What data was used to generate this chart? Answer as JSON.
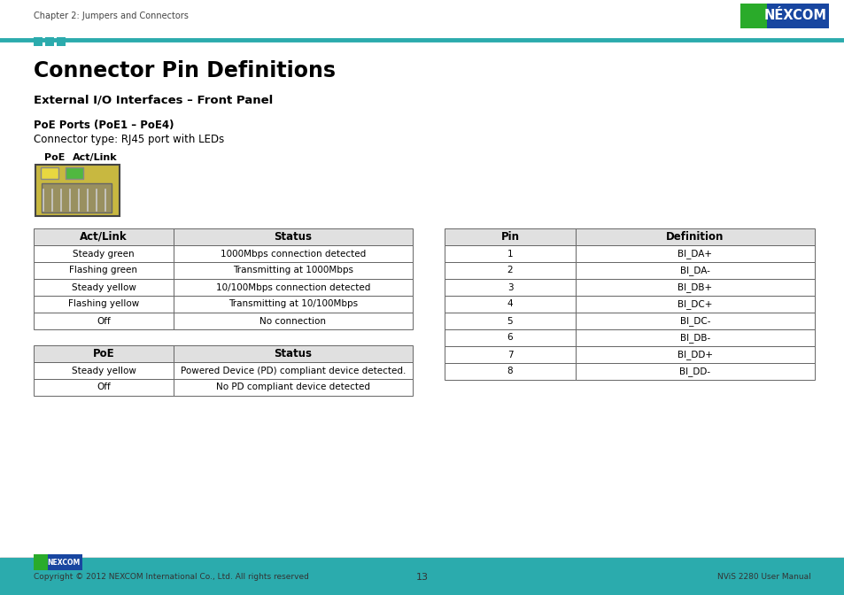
{
  "title": "Connector Pin Definitions",
  "chapter_header": "Chapter 2: Jumpers and Connectors",
  "section1": "External I/O Interfaces – Front Panel",
  "section2": "PoE Ports (PoE1 – PoE4)",
  "connector_type": "Connector type: RJ45 port with LEDs",
  "poe_label": "PoE",
  "act_link_label": "Act/Link",
  "teal_color": "#2BABAD",
  "table1_headers": [
    "Act/Link",
    "Status"
  ],
  "table1_data": [
    [
      "Steady green",
      "1000Mbps connection detected"
    ],
    [
      "Flashing green",
      "Transmitting at 1000Mbps"
    ],
    [
      "Steady yellow",
      "10/100Mbps connection detected"
    ],
    [
      "Flashing yellow",
      "Transmitting at 10/100Mbps"
    ],
    [
      "Off",
      "No connection"
    ]
  ],
  "table2_headers": [
    "PoE",
    "Status"
  ],
  "table2_data": [
    [
      "Steady yellow",
      "Powered Device (PD) compliant device detected."
    ],
    [
      "Off",
      "No PD compliant device detected"
    ]
  ],
  "table3_headers": [
    "Pin",
    "Definition"
  ],
  "table3_data": [
    [
      "1",
      "BI_DA+"
    ],
    [
      "2",
      "BI_DA-"
    ],
    [
      "3",
      "BI_DB+"
    ],
    [
      "4",
      "BI_DC+"
    ],
    [
      "5",
      "BI_DC-"
    ],
    [
      "6",
      "BI_DB-"
    ],
    [
      "7",
      "BI_DD+"
    ],
    [
      "8",
      "BI_DD-"
    ]
  ],
  "footer_left": "Copyright © 2012 NEXCOM International Co., Ltd. All rights reserved",
  "footer_center": "13",
  "footer_right": "NViS 2280 User Manual",
  "bg_color": "#ffffff",
  "text_color": "#000000",
  "gray_text": "#555555",
  "table_border": "#666666",
  "header_bg": "#e0e0e0",
  "footer_teal": "#2BABAD",
  "logo_blue": "#1846A0",
  "logo_green": "#2AAB2A"
}
